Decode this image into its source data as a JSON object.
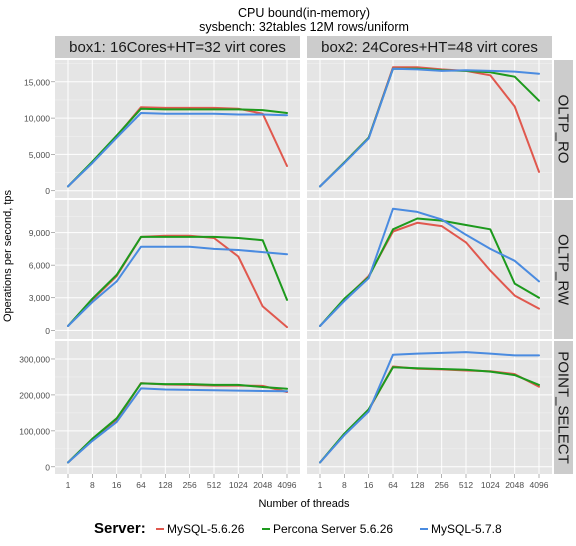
{
  "chart_data": {
    "type": "line",
    "title": "CPU bound(in-memory)",
    "subtitle": "sysbench: 32tables 12M rows/uniform",
    "xlabel": "Number of threads",
    "ylabel": "Operations per second, tps",
    "x": [
      1,
      8,
      16,
      64,
      128,
      256,
      512,
      1024,
      2048,
      4096
    ],
    "x_tick_labels": [
      "1",
      "8",
      "16",
      "64",
      "128",
      "256",
      "512",
      "1024",
      "2048",
      "4096"
    ],
    "columns": [
      "box1: 16Cores+HT=32 virt cores",
      "box2: 24Cores+HT=48 virt cores"
    ],
    "legend": {
      "title": "Server:",
      "position": "bottom",
      "entries": [
        {
          "name": "MySQL-5.6.26",
          "color": "#e0584e"
        },
        {
          "name": "Percona Server 5.6.26",
          "color": "#1d9a1d"
        },
        {
          "name": "MySQL-5.7.8",
          "color": "#4a8be0"
        }
      ]
    },
    "grid": true,
    "rows": [
      {
        "label": "OLTP_RO",
        "ylim": [
          -1000,
          18000
        ],
        "yticks": [
          0,
          5000,
          10000,
          15000
        ],
        "ytick_labels": [
          "0",
          "5,000",
          "10,000",
          "15,000"
        ],
        "panels": [
          {
            "series": [
              {
                "name": "MySQL-5.6.26",
                "values": [
                  600,
                  3900,
                  7500,
                  11500,
                  11400,
                  11400,
                  11400,
                  11300,
                  10600,
                  3400
                ]
              },
              {
                "name": "Percona Server 5.6.26",
                "values": [
                  600,
                  4000,
                  7600,
                  11300,
                  11200,
                  11200,
                  11200,
                  11200,
                  11100,
                  10700
                ]
              },
              {
                "name": "MySQL-5.7.8",
                "values": [
                  600,
                  3800,
                  7300,
                  10700,
                  10600,
                  10600,
                  10600,
                  10500,
                  10500,
                  10400
                ]
              }
            ]
          },
          {
            "series": [
              {
                "name": "MySQL-5.6.26",
                "values": [
                  600,
                  3900,
                  7300,
                  17000,
                  17000,
                  16700,
                  16500,
                  15900,
                  11600,
                  2600
                ]
              },
              {
                "name": "Percona Server 5.6.26",
                "values": [
                  600,
                  3900,
                  7300,
                  16800,
                  16800,
                  16600,
                  16500,
                  16300,
                  15700,
                  12400
                ]
              },
              {
                "name": "MySQL-5.7.8",
                "values": [
                  600,
                  3800,
                  7200,
                  16800,
                  16700,
                  16500,
                  16600,
                  16500,
                  16400,
                  16100
                ]
              }
            ]
          }
        ]
      },
      {
        "label": "OLTP_RW",
        "ylim": [
          -800,
          12000
        ],
        "yticks": [
          0,
          3000,
          6000,
          9000
        ],
        "ytick_labels": [
          "0",
          "3,000",
          "6,000",
          "9,000"
        ],
        "panels": [
          {
            "series": [
              {
                "name": "MySQL-5.6.26",
                "values": [
                  400,
                  2800,
                  5000,
                  8600,
                  8700,
                  8700,
                  8500,
                  6800,
                  2200,
                  300
                ]
              },
              {
                "name": "Percona Server 5.6.26",
                "values": [
                  400,
                  2900,
                  5100,
                  8600,
                  8600,
                  8600,
                  8600,
                  8500,
                  8300,
                  2800
                ]
              },
              {
                "name": "MySQL-5.7.8",
                "values": [
                  400,
                  2600,
                  4500,
                  7700,
                  7700,
                  7700,
                  7500,
                  7400,
                  7200,
                  7000
                ]
              }
            ]
          },
          {
            "series": [
              {
                "name": "MySQL-5.6.26",
                "values": [
                  400,
                  2800,
                  5000,
                  9100,
                  9900,
                  9600,
                  8100,
                  5500,
                  3200,
                  2000
                ]
              },
              {
                "name": "Percona Server 5.6.26",
                "values": [
                  400,
                  2900,
                  4900,
                  9300,
                  10300,
                  10100,
                  9700,
                  9300,
                  4300,
                  3000
                ]
              },
              {
                "name": "MySQL-5.7.8",
                "values": [
                  400,
                  2700,
                  4800,
                  11200,
                  10900,
                  10200,
                  8800,
                  7500,
                  6400,
                  4500
                ]
              }
            ]
          }
        ]
      },
      {
        "label": "POINT_SELECT",
        "ylim": [
          -20000,
          350000
        ],
        "yticks": [
          0,
          100000,
          200000,
          300000
        ],
        "ytick_labels": [
          "0",
          "100,000",
          "200,000",
          "300,000"
        ],
        "panels": [
          {
            "series": [
              {
                "name": "MySQL-5.6.26",
                "values": [
                  12000,
                  75000,
                  130000,
                  233000,
                  229000,
                  228000,
                  226000,
                  226000,
                  225000,
                  208000
                ]
              },
              {
                "name": "Percona Server 5.6.26",
                "values": [
                  12000,
                  78000,
                  135000,
                  232000,
                  230000,
                  230000,
                  228000,
                  228000,
                  222000,
                  217000
                ]
              },
              {
                "name": "MySQL-5.7.8",
                "values": [
                  12000,
                  72000,
                  125000,
                  218000,
                  215000,
                  214000,
                  213000,
                  212000,
                  211000,
                  210000
                ]
              }
            ]
          },
          {
            "series": [
              {
                "name": "MySQL-5.6.26",
                "values": [
                  12000,
                  90000,
                  158000,
                  279000,
                  273000,
                  271000,
                  268000,
                  266000,
                  258000,
                  223000
                ]
              },
              {
                "name": "Percona Server 5.6.26",
                "values": [
                  12000,
                  92000,
                  160000,
                  277000,
                  274000,
                  272000,
                  270000,
                  265000,
                  255000,
                  228000
                ]
              },
              {
                "name": "MySQL-5.7.8",
                "values": [
                  12000,
                  88000,
                  154000,
                  312000,
                  315000,
                  317000,
                  319000,
                  315000,
                  310000,
                  310000
                ]
              }
            ]
          }
        ]
      }
    ]
  }
}
